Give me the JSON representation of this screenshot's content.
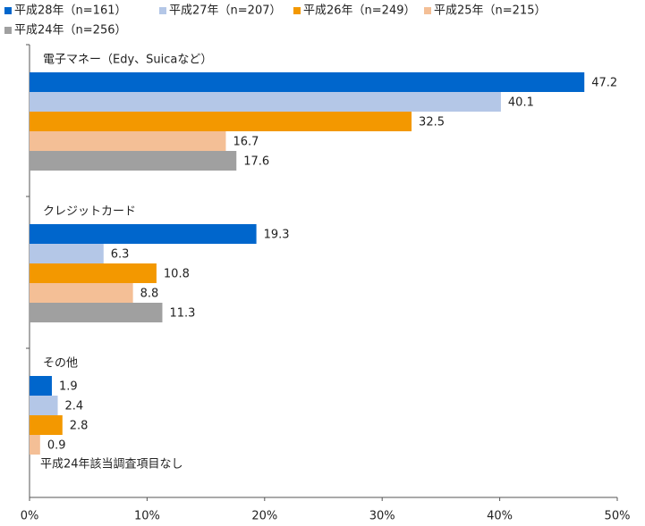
{
  "chart_data": {
    "type": "bar",
    "orientation": "horizontal",
    "categories": [
      "電子マネー（Edy、Suicaなど）",
      "クレジットカード",
      "その他"
    ],
    "series": [
      {
        "name": "平成28年（n=161）",
        "color": "#0066cc",
        "values": [
          47.2,
          19.3,
          1.9
        ]
      },
      {
        "name": "平成27年（n=207）",
        "color": "#b4c7e7",
        "values": [
          40.1,
          6.3,
          2.4
        ]
      },
      {
        "name": "平成26年（n=249）",
        "color": "#f39800",
        "values": [
          32.5,
          10.8,
          2.8
        ]
      },
      {
        "name": "平成25年（n=215）",
        "color": "#f4bf96",
        "values": [
          16.7,
          8.8,
          0.9
        ]
      },
      {
        "name": "平成24年（n=256）",
        "color": "#a0a0a0",
        "values": [
          17.6,
          11.3,
          null
        ]
      }
    ],
    "annotations": [
      "平成24年該当調査項目なし"
    ],
    "xlim": [
      0,
      50
    ],
    "xticks": [
      {
        "value": 0,
        "label": "0%"
      },
      {
        "value": 10,
        "label": "10%"
      },
      {
        "value": 20,
        "label": "20%"
      },
      {
        "value": 30,
        "label": "30%"
      },
      {
        "value": 40,
        "label": "40%"
      },
      {
        "value": 50,
        "label": "50%"
      }
    ],
    "legend": "top",
    "data_labels": true
  }
}
